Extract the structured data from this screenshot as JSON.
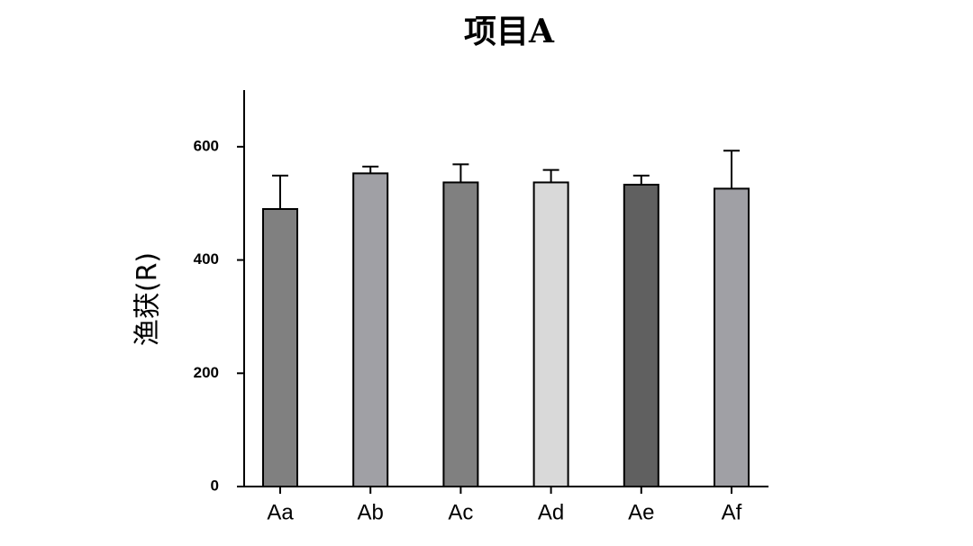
{
  "chart_data": {
    "type": "bar",
    "title": "项目A",
    "y_label": "渔获(R)",
    "categories": [
      "Aa",
      "Ab",
      "Ac",
      "Ad",
      "Ae",
      "Af"
    ],
    "values": [
      490,
      553,
      537,
      537,
      533,
      526
    ],
    "errors": [
      59,
      12,
      32,
      22,
      16,
      67
    ],
    "colors": [
      "#808080",
      "#a0a0a5",
      "#808080",
      "#d9d9d9",
      "#606060",
      "#a0a0a5"
    ],
    "ylim": [
      0,
      700
    ],
    "yticks": [
      0,
      200,
      400,
      600
    ],
    "grid": false
  }
}
